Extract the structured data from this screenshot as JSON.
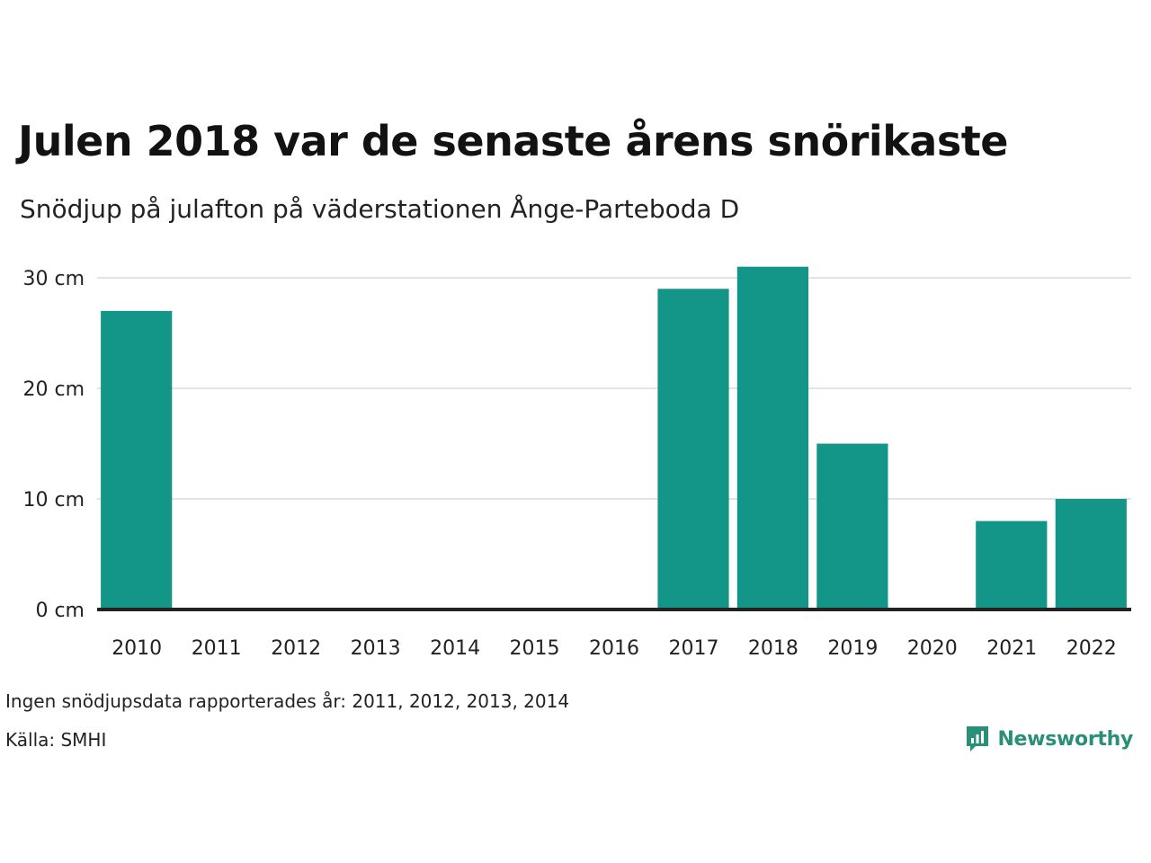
{
  "header": {
    "title": "Julen 2018 var de senaste årens snörikaste",
    "subtitle": "Snödjup på julafton på väderstationen Ånge-Parteboda D"
  },
  "footer": {
    "note": "Ingen snödjupsdata rapporterades år: 2011, 2012, 2013, 2014",
    "source": "Källa: SMHI",
    "brand": "Newsworthy"
  },
  "colors": {
    "bar": "#139587",
    "gridline": "#e3e3e3",
    "baseline": "#222222",
    "brand": "#2a8f79"
  },
  "icons": {
    "brand_logo": "newsworthy-logo-icon"
  },
  "chart_data": {
    "type": "bar",
    "categories": [
      "2010",
      "2011",
      "2012",
      "2013",
      "2014",
      "2015",
      "2016",
      "2017",
      "2018",
      "2019",
      "2020",
      "2021",
      "2022"
    ],
    "values": [
      27,
      null,
      null,
      null,
      null,
      0,
      0,
      29,
      31,
      15,
      0,
      8,
      10
    ],
    "ylim": [
      0,
      30
    ],
    "yticks": [
      0,
      10,
      20,
      30
    ],
    "ytick_labels": [
      "0 cm",
      "10 cm",
      "20 cm",
      "30 cm"
    ],
    "grid": true,
    "legend": "none"
  }
}
